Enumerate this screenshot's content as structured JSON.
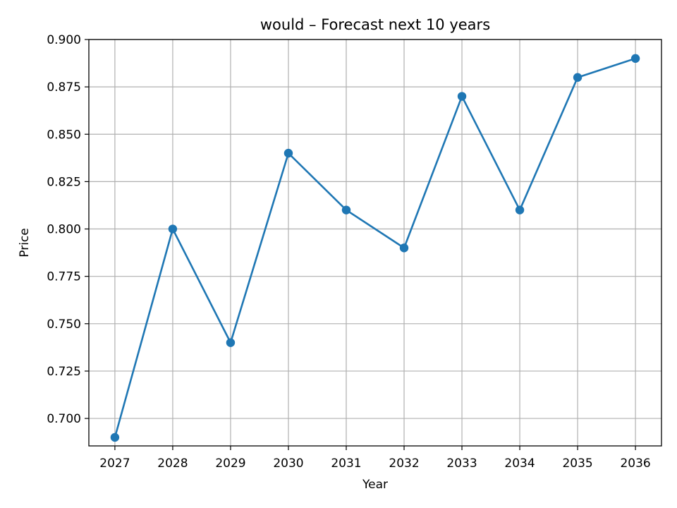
{
  "chart_data": {
    "type": "line",
    "title": "would – Forecast next 10 years",
    "xlabel": "Year",
    "ylabel": "Price",
    "x": [
      2027,
      2028,
      2029,
      2030,
      2031,
      2032,
      2033,
      2034,
      2035,
      2036
    ],
    "series": [
      {
        "values": [
          0.69,
          0.8,
          0.74,
          0.84,
          0.81,
          0.79,
          0.87,
          0.81,
          0.88,
          0.89
        ],
        "color": "#1f77b4",
        "marker": "circle"
      }
    ],
    "xlim": [
      2026.55,
      2036.45
    ],
    "ylim": [
      0.6855,
      0.9
    ],
    "x_ticks": [
      "2027",
      "2028",
      "2029",
      "2030",
      "2031",
      "2032",
      "2033",
      "2034",
      "2035",
      "2036"
    ],
    "y_ticks": [
      "0.700",
      "0.725",
      "0.750",
      "0.775",
      "0.800",
      "0.825",
      "0.850",
      "0.875",
      "0.900"
    ],
    "y_tick_values": [
      0.7,
      0.725,
      0.75,
      0.775,
      0.8,
      0.825,
      0.85,
      0.875,
      0.9
    ],
    "grid": true,
    "legend": "none"
  }
}
